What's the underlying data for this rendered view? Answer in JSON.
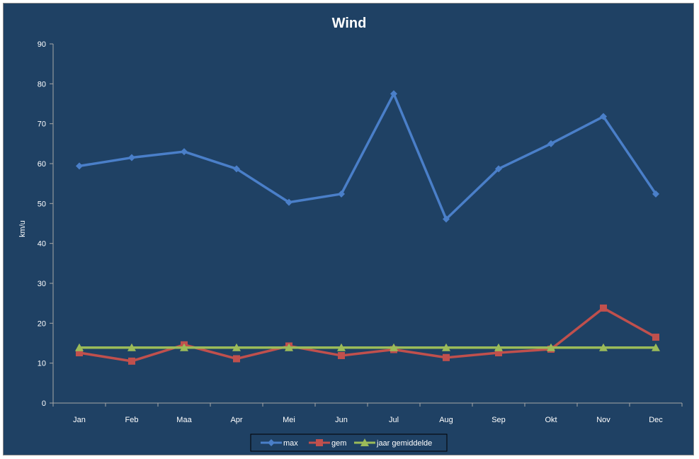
{
  "chart_data": {
    "type": "line",
    "title": "Wind",
    "xlabel": "",
    "ylabel": "km/u",
    "ylim": [
      0,
      90
    ],
    "ytick_step": 10,
    "grid": false,
    "legend_position": "bottom",
    "categories": [
      "Jan",
      "Feb",
      "Maa",
      "Apr",
      "Mei",
      "Jun",
      "Jul",
      "Aug",
      "Sep",
      "Okt",
      "Nov",
      "Dec"
    ],
    "series": [
      {
        "name": "max",
        "color": "#4a7fc9",
        "marker": "diamond",
        "values": [
          59.4,
          61.5,
          63.0,
          58.7,
          50.3,
          52.4,
          77.5,
          46.1,
          58.7,
          65.0,
          71.8,
          52.4
        ]
      },
      {
        "name": "gem",
        "color": "#c0504d",
        "marker": "square",
        "values": [
          12.6,
          10.5,
          14.6,
          11.1,
          14.3,
          11.9,
          13.4,
          11.4,
          12.6,
          13.5,
          23.8,
          16.5
        ]
      },
      {
        "name": "jaar gemiddelde",
        "color": "#9bbb59",
        "marker": "triangle",
        "values": [
          13.9,
          13.9,
          13.9,
          13.9,
          13.9,
          13.9,
          13.9,
          13.9,
          13.9,
          13.9,
          13.9,
          13.9
        ]
      }
    ]
  },
  "colors": {
    "background": "#1f4164",
    "axis": "#a6a6a6",
    "text": "#ffffff",
    "legend_border": "#000000"
  }
}
